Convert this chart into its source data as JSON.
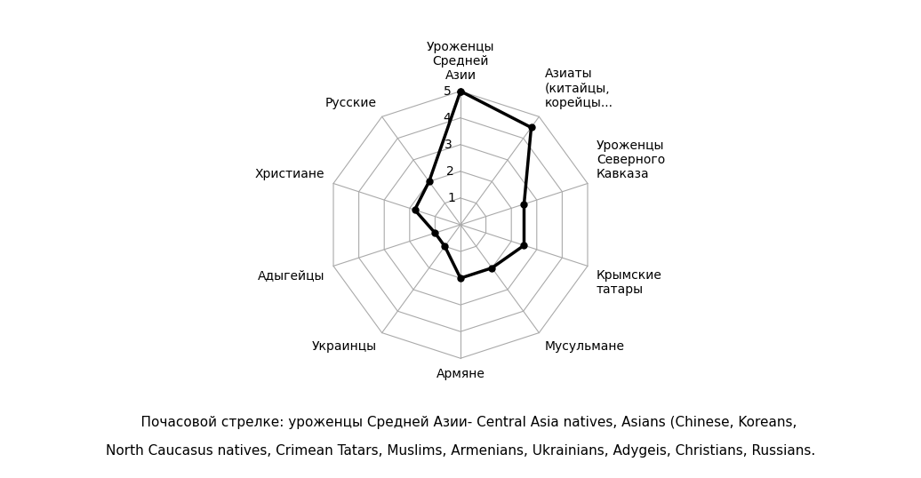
{
  "categories": [
    "Уроженцы\nСредней\nАзии",
    "Азиаты\n(китайцы,\nкорейцы...",
    "Уроженцы\nСеверного\nКавказа",
    "Крымские\nтатары",
    "Мусульмане",
    "Армяне",
    "Украинцы",
    "Адыгейцы",
    "Христиане",
    "Русские"
  ],
  "values": [
    5.0,
    4.5,
    2.5,
    2.5,
    2.0,
    2.0,
    1.0,
    1.0,
    1.8,
    2.0
  ],
  "rmin": 0,
  "rmax": 5,
  "rticks": [
    1,
    2,
    3,
    4,
    5
  ],
  "line_color": "#000000",
  "line_width": 2.5,
  "marker_size": 5,
  "grid_color": "#aaaaaa",
  "background_color": "#ffffff",
  "caption_line1": "    Почасовой стрелке: уроженцы Средней Азии- Central Asia natives, Asians (Chinese, Koreans,",
  "caption_line2": "North Caucasus natives, Crimean Tatars, Muslims, Armenians, Ukrainians, Adygeis, Christians, Russians.",
  "caption_fontsize": 11,
  "label_fontsize": 10,
  "tick_fontsize": 10
}
